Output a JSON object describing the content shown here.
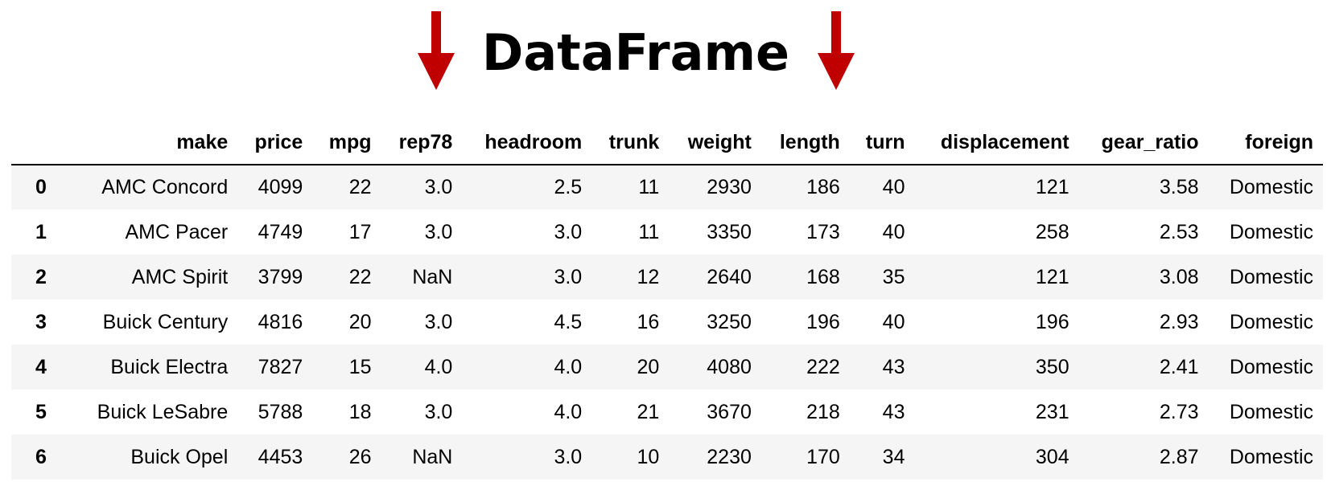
{
  "title": "DataFrame",
  "colors": {
    "arrow": "#c00000",
    "stripe": "#f5f5f5",
    "text": "#000000"
  },
  "icons": {
    "left_arrow": "down-arrow-icon",
    "right_arrow": "down-arrow-icon"
  },
  "table": {
    "columns": [
      "make",
      "price",
      "mpg",
      "rep78",
      "headroom",
      "trunk",
      "weight",
      "length",
      "turn",
      "displacement",
      "gear_ratio",
      "foreign"
    ],
    "rows": [
      {
        "index": "0",
        "cells": [
          "AMC Concord",
          "4099",
          "22",
          "3.0",
          "2.5",
          "11",
          "2930",
          "186",
          "40",
          "121",
          "3.58",
          "Domestic"
        ]
      },
      {
        "index": "1",
        "cells": [
          "AMC Pacer",
          "4749",
          "17",
          "3.0",
          "3.0",
          "11",
          "3350",
          "173",
          "40",
          "258",
          "2.53",
          "Domestic"
        ]
      },
      {
        "index": "2",
        "cells": [
          "AMC Spirit",
          "3799",
          "22",
          "NaN",
          "3.0",
          "12",
          "2640",
          "168",
          "35",
          "121",
          "3.08",
          "Domestic"
        ]
      },
      {
        "index": "3",
        "cells": [
          "Buick Century",
          "4816",
          "20",
          "3.0",
          "4.5",
          "16",
          "3250",
          "196",
          "40",
          "196",
          "2.93",
          "Domestic"
        ]
      },
      {
        "index": "4",
        "cells": [
          "Buick Electra",
          "7827",
          "15",
          "4.0",
          "4.0",
          "20",
          "4080",
          "222",
          "43",
          "350",
          "2.41",
          "Domestic"
        ]
      },
      {
        "index": "5",
        "cells": [
          "Buick LeSabre",
          "5788",
          "18",
          "3.0",
          "4.0",
          "21",
          "3670",
          "218",
          "43",
          "231",
          "2.73",
          "Domestic"
        ]
      },
      {
        "index": "6",
        "cells": [
          "Buick Opel",
          "4453",
          "26",
          "NaN",
          "3.0",
          "10",
          "2230",
          "170",
          "34",
          "304",
          "2.87",
          "Domestic"
        ]
      }
    ]
  }
}
